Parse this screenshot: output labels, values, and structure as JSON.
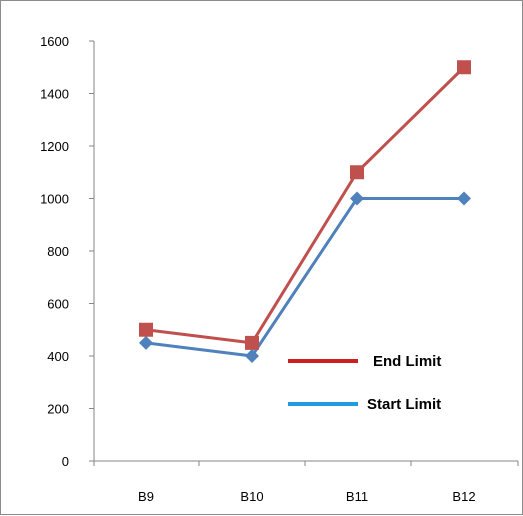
{
  "chart_data": {
    "type": "line",
    "categories": [
      "B9",
      "B10",
      "B11",
      "B12"
    ],
    "series": [
      {
        "name": "End Limit",
        "values": [
          500,
          450,
          1100,
          1500
        ],
        "color": "#c0504d",
        "marker": "square"
      },
      {
        "name": "Start Limit",
        "values": [
          450,
          400,
          1000,
          1000
        ],
        "color": "#4f81bd",
        "marker": "diamond"
      }
    ],
    "legend": [
      {
        "label": "End Limit",
        "color": "#cc1f1f"
      },
      {
        "label": "Start Limit",
        "color": "#1f9be0"
      }
    ],
    "y_ticks": [
      "0",
      "200",
      "400",
      "600",
      "800",
      "1000",
      "1200",
      "1400",
      "1600"
    ],
    "ylim": [
      0,
      1600
    ],
    "grid": false,
    "legend_placement": "right-center",
    "title": "",
    "xlabel": "",
    "ylabel": ""
  }
}
